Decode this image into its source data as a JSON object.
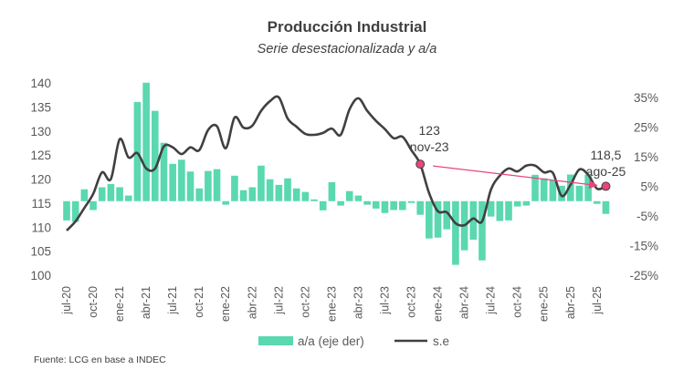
{
  "chart_data": {
    "type": "bar+line",
    "title": "Producción Industrial",
    "subtitle": "Serie desestacionalizada y a/a",
    "source": "Fuente: LCG en base a INDEC",
    "months": [
      "jul-20",
      "ago-20",
      "sep-20",
      "oct-20",
      "nov-20",
      "dic-20",
      "ene-21",
      "feb-21",
      "mar-21",
      "abr-21",
      "may-21",
      "jun-21",
      "jul-21",
      "ago-21",
      "sep-21",
      "oct-21",
      "nov-21",
      "dic-21",
      "ene-22",
      "feb-22",
      "mar-22",
      "abr-22",
      "may-22",
      "jun-22",
      "jul-22",
      "ago-22",
      "sep-22",
      "oct-22",
      "nov-22",
      "dic-22",
      "ene-23",
      "feb-23",
      "mar-23",
      "abr-23",
      "may-23",
      "jun-23",
      "jul-23",
      "ago-23",
      "sep-23",
      "oct-23",
      "nov-23",
      "dic-23",
      "ene-24",
      "feb-24",
      "mar-24",
      "abr-24",
      "may-24",
      "jun-24",
      "jul-24",
      "ago-24",
      "sep-24",
      "oct-24",
      "nov-24",
      "dic-24",
      "ene-25",
      "feb-25",
      "mar-25",
      "abr-25",
      "may-25",
      "jun-25",
      "jul-25",
      "ago-25"
    ],
    "x_tick_labels": [
      "jul-20",
      "oct-20",
      "ene-21",
      "abr-21",
      "jul-21",
      "oct-21",
      "ene-22",
      "abr-22",
      "jul-22",
      "oct-22",
      "ene-23",
      "abr-23",
      "jul-23",
      "oct-23",
      "ene-24",
      "abr-24",
      "jul-24",
      "oct-24",
      "ene-25",
      "abr-25",
      "jul-25"
    ],
    "left_axis": {
      "min": 100,
      "max": 140,
      "step": 5,
      "ticks": [
        "100",
        "105",
        "110",
        "115",
        "120",
        "125",
        "130",
        "135",
        "140"
      ]
    },
    "right_axis": {
      "min": -25,
      "max": 35,
      "step": 10,
      "ticks": [
        "-25%",
        "-15%",
        "-5%",
        "5%",
        "15%",
        "25%",
        "35%"
      ]
    },
    "series": [
      {
        "name": "a/a (eje der)",
        "type": "bar",
        "axis": "right",
        "color": "#5AD8B0",
        "values": [
          -6.5,
          -7,
          4,
          -3,
          4.7,
          5.8,
          4.7,
          1.9,
          33.5,
          40,
          30.5,
          19.7,
          12.6,
          14,
          10,
          4.3,
          10.2,
          10.8,
          -1.2,
          8.6,
          3.7,
          4.7,
          12,
          7.4,
          5.5,
          7.7,
          4.3,
          3.1,
          0.6,
          -3.1,
          6.4,
          -1.5,
          3.4,
          1.9,
          -1.2,
          -2.5,
          -4,
          -3,
          -3,
          -0.6,
          -4.6,
          -12.6,
          -12.3,
          -9.5,
          -21.5,
          -16.6,
          -13,
          -20,
          -5.2,
          -6.7,
          -6.5,
          -1.8,
          -1.5,
          8.9,
          7.7,
          7,
          5.2,
          9,
          5.2,
          9,
          -0.9,
          -4.3
        ]
      },
      {
        "name": "s.e",
        "type": "line",
        "axis": "left",
        "color": "#404040",
        "values": [
          109.3,
          111.2,
          114,
          116.9,
          121.4,
          120,
          128.3,
          124.5,
          125.4,
          122.2,
          122.2,
          126.8,
          126.6,
          125.2,
          126.6,
          126,
          130.2,
          131,
          126.4,
          132.8,
          130.7,
          131.1,
          134.2,
          136.2,
          137,
          132.6,
          130.9,
          129.4,
          129.2,
          129.6,
          130.5,
          129.2,
          134.5,
          136.8,
          134.2,
          132.1,
          130.4,
          128.5,
          128.8,
          126,
          123.1,
          117.1,
          113.3,
          113.1,
          110.8,
          110.4,
          111.8,
          111.2,
          117.8,
          120.7,
          122.2,
          121.6,
          122.8,
          122.8,
          121.4,
          121.3,
          116.5,
          118.8,
          122,
          120.9,
          118,
          118.5
        ]
      }
    ],
    "annotations": [
      {
        "month": "nov-23",
        "value_label": "123",
        "date_label": "nov-23"
      },
      {
        "month": "ago-25",
        "value_label": "118,5",
        "date_label": "ago-25"
      }
    ],
    "annotation_color": "#E8457E",
    "legend_position": "bottom",
    "grid": false
  }
}
